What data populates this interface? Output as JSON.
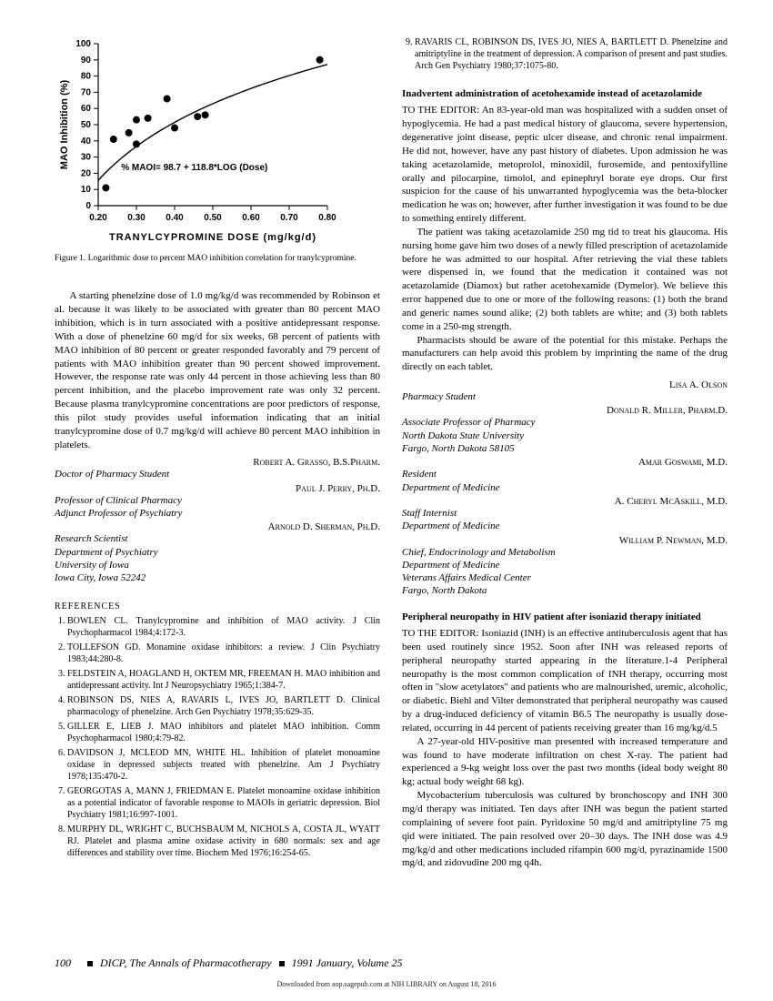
{
  "chart": {
    "type": "scatter-with-curve",
    "x_label": "TRANYLCYPROMINE  DOSE  (mg/kg/d)",
    "y_label": "MAO Inhibition (%)",
    "xlim": [
      0.2,
      0.8
    ],
    "ylim": [
      0,
      100
    ],
    "x_ticks": [
      0.2,
      0.3,
      0.4,
      0.5,
      0.6,
      0.7,
      0.8
    ],
    "y_ticks": [
      0,
      10,
      20,
      30,
      40,
      50,
      60,
      70,
      80,
      90,
      100
    ],
    "annotation": "% MAOI= 98.7 + 118.8*LOG (Dose)",
    "annotation_fontsize": 10,
    "points": [
      {
        "x": 0.22,
        "y": 11
      },
      {
        "x": 0.24,
        "y": 41
      },
      {
        "x": 0.28,
        "y": 45
      },
      {
        "x": 0.3,
        "y": 53
      },
      {
        "x": 0.3,
        "y": 38
      },
      {
        "x": 0.33,
        "y": 54
      },
      {
        "x": 0.38,
        "y": 66
      },
      {
        "x": 0.4,
        "y": 48
      },
      {
        "x": 0.46,
        "y": 55
      },
      {
        "x": 0.48,
        "y": 56
      },
      {
        "x": 0.78,
        "y": 90
      }
    ],
    "curve_formula": "y = 98.7 + 118.8*log10(x)",
    "marker_color": "#000000",
    "marker_radius": 4,
    "line_color": "#000000",
    "line_width": 1.4,
    "axis_color": "#000000",
    "axis_width": 1.2,
    "tick_length": 5,
    "label_fontsize": 11,
    "label_fontweight": "bold",
    "tick_fontsize": 10
  },
  "caption": "Figure 1. Logarithmic dose to percent MAO inhibition correlation for tranylcypromine.",
  "left_body": "A starting phenelzine dose of 1.0 mg/kg/d was recommended by Robinson et al. because it was likely to be associated with greater than 80 percent MAO inhibition, which is in turn associated with a positive antidepressant response. With a dose of phenelzine 60 mg/d for six weeks, 68 percent of patients with MAO inhibition of 80 percent or greater responded favorably and 79 percent of patients with MAO inhibition greater than 90 percent showed improvement. However, the response rate was only 44 percent in those achieving less than 80 percent inhibition, and the placebo improvement rate was only 32 percent. Because plasma tranylcypromine concentrations are poor predictors of response, this pilot study provides useful information indicating that an initial tranylcypromine dose of 0.7 mg/kg/d will achieve 80 percent MAO inhibition in platelets.",
  "left_authors": [
    {
      "name": "Robert A. Grasso, B.S.Pharm.",
      "title": "Doctor of Pharmacy Student"
    },
    {
      "name": "Paul J. Perry, Ph.D.",
      "title": "Professor of Clinical Pharmacy\nAdjunct Professor of Psychiatry"
    },
    {
      "name": "Arnold D. Sherman, Ph.D.",
      "title": "Research Scientist\nDepartment of Psychiatry\nUniversity of Iowa\nIowa City, Iowa 52242"
    }
  ],
  "refs_heading": "REFERENCES",
  "references_left": [
    "BOWLEN CL. Tranylcypromine and inhibition of MAO activity. J Clin Psychopharmacol 1984;4:172-3.",
    "TOLLEFSON GD. Monamine oxidase inhibitors: a review. J Clin Psychiatry 1983;44:280-8.",
    "FELDSTEIN A, HOAGLAND H, OKTEM MR, FREEMAN H. MAO inhibition and antidepressant activity. Int J Neuropsychiatry 1965;1:384-7.",
    "ROBINSON DS, NIES A, RAVARIS L, IVES JO, BARTLETT D. Clinical pharmacology of phenelzine. Arch Gen Psychiatry 1978;35:629-35.",
    "GILLER E, LIEB J. MAO inhibitors and platelet MAO inhibition. Comm Psychopharmacol 1980;4:79-82.",
    "DAVIDSON J, MCLEOD MN, WHITE HL. Inhibition of platelet monoamine oxidase in depressed subjects treated with phenelzine. Am J Psychiatry 1978;135:470-2.",
    "GEORGOTAS A, MANN J, FRIEDMAN E. Platelet monoamine oxidase inhibition as a potential indicator of favorable response to MAOIs in geriatric depression. Biol Psychiatry 1981;16:997-1001.",
    "MURPHY DL, WRIGHT C, BUCHSBAUM M, NICHOLS A, COSTA JL, WYATT RJ. Platelet and plasma amine oxidase activity in 680 normals: sex and age differences and stability over time. Biochem Med 1976;16:254-65."
  ],
  "ref9": "RAVARIS CL, ROBINSON DS, IVES JO, NIES A, BARTLETT D. Phenelzine and amitriptyline in the treatment of depression. A comparison of present and past studies. Arch Gen Psychiatry 1980;37:1075-80.",
  "letter1": {
    "title": "Inadvertent administration of acetohexamide instead of acetazolamide",
    "p1": "TO THE EDITOR: An 83-year-old man was hospitalized with a sudden onset of hypoglycemia. He had a past medical history of glaucoma, severe hypertension, degenerative joint disease, peptic ulcer disease, and chronic renal impairment. He did not, however, have any past history of diabetes. Upon admission he was taking acetazolamide, metoprolol, minoxidil, furosemide, and pentoxifylline orally and pilocarpine, timolol, and epinephryl borate eye drops. Our first suspicion for the cause of his unwarranted hypoglycemia was the beta-blocker medication he was on; however, after further investigation it was found to be due to something entirely different.",
    "p2": "The patient was taking acetazolamide 250 mg tid to treat his glaucoma. His nursing home gave him two doses of a newly filled prescription of acetazolamide before he was admitted to our hospital. After retrieving the vial these tablets were dispensed in, we found that the medication it contained was not acetazolamide (Diamox) but rather acetohexamide (Dymelor). We believe this error happened due to one or more of the following reasons: (1) both the brand and generic names sound alike; (2) both tablets are white; and (3) both tablets come in a 250-mg strength.",
    "p3": "Pharmacists should be aware of the potential for this mistake. Perhaps the manufacturers can help avoid this problem by imprinting the name of the drug directly on each tablet.",
    "authors": [
      {
        "name": "Lisa A. Olson",
        "title": "Pharmacy Student"
      },
      {
        "name": "Donald R. Miller, Pharm.D.",
        "title": "Associate Professor of Pharmacy\nNorth Dakota State University\nFargo, North Dakota 58105"
      },
      {
        "name": "Amar Goswami, M.D.",
        "title": "Resident\nDepartment of Medicine"
      },
      {
        "name": "A. Cheryl McAskill, M.D.",
        "title": "Staff Internist\nDepartment of Medicine"
      },
      {
        "name": "William P. Newman, M.D.",
        "title": "Chief, Endocrinology and Metabolism\nDepartment of Medicine\nVeterans Affairs Medical Center\nFargo, North Dakota"
      }
    ]
  },
  "letter2": {
    "title": "Peripheral neuropathy in HIV patient after isoniazid therapy initiated",
    "p1": "TO THE EDITOR: Isoniazid (INH) is an effective antituberculosis agent that has been used routinely since 1952. Soon after INH was released reports of peripheral neuropathy started appearing in the literature.1-4 Peripheral neuropathy is the most common complication of INH therapy, occurring most often in \"slow acetylators\" and patients who are malnourished, uremic, alcoholic, or diabetic. Biehl and Vilter demonstrated that peripheral neuropathy was caused by a drug-induced deficiency of vitamin B6.5 The neuropathy is usually dose-related, occurring in 44 percent of patients receiving greater than 16 mg/kg/d.5",
    "p2": "A 27-year-old HIV-positive man presented with increased temperature and was found to have moderate infiltration on chest X-ray. The patient had experienced a 9-kg weight loss over the past two months (ideal body weight 80 kg; actual body weight 68 kg).",
    "p3": "Mycobacterium tuberculosis was cultured by bronchoscopy and INH 300 mg/d therapy was initiated. Ten days after INH was begun the patient started complaining of severe foot pain. Pyridoxine 50 mg/d and amitriptyline 75 mg qid were initiated. The pain resolved over 20–30 days. The INH dose was 4.9 mg/kg/d and other medications included rifampin 600 mg/d, pyrazinamide 1500 mg/d, and zidovudine 200 mg q4h."
  },
  "footer": {
    "page": "100",
    "journal": "DICP, The Annals of Pharmacotherapy",
    "issue": "1991 January, Volume 25"
  },
  "download_note": "Downloaded from aop.sagepub.com at NIH LIBRARY on August 18, 2016"
}
